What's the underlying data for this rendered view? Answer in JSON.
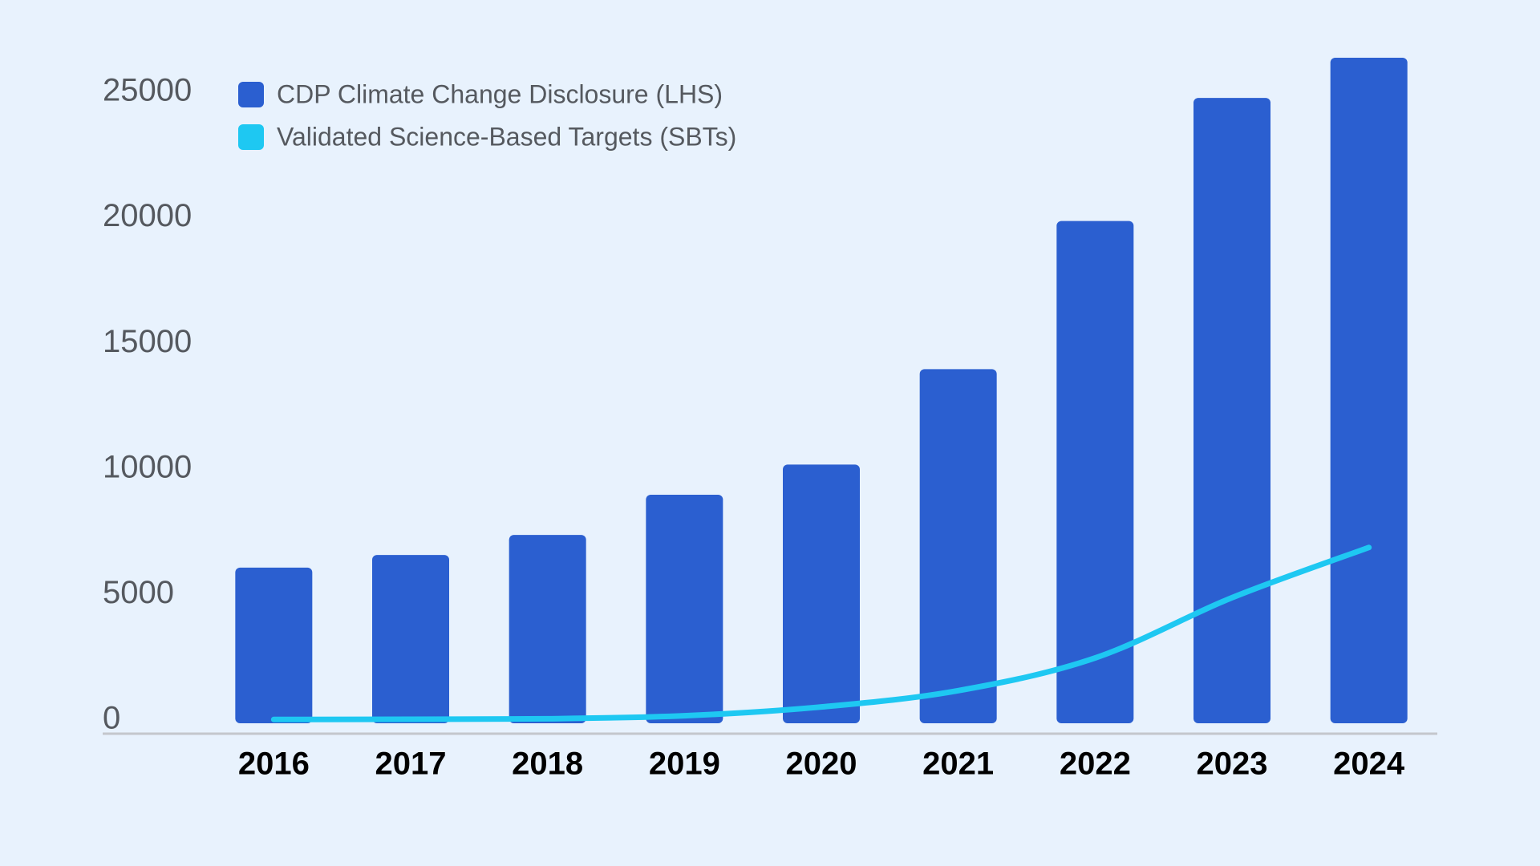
{
  "colors": {
    "background": "#e8f2fd",
    "bar": "#2b5fd0",
    "line": "#1ec8f2",
    "axis": "#c4c7cc",
    "ytick_text": "#55595f",
    "xtick_text": "#000000",
    "legend_text": "#55595f"
  },
  "legend": {
    "placement": "top-left",
    "items": [
      {
        "label": "CDP Climate Change Disclosure (LHS)",
        "color": "#2b5fd0",
        "marker": "rounded-square"
      },
      {
        "label": "Validated Science-Based Targets (SBTs)",
        "color": "#1ec8f2",
        "marker": "rounded-square"
      }
    ]
  },
  "chart_data": {
    "type": "bar",
    "title": "",
    "xlabel": "",
    "ylabel": "",
    "categories": [
      "2016",
      "2017",
      "2018",
      "2019",
      "2020",
      "2021",
      "2022",
      "2023",
      "2024"
    ],
    "ylim": [
      0,
      25000
    ],
    "yticks": [
      0,
      5000,
      10000,
      15000,
      20000,
      25000
    ],
    "grid": false,
    "series": [
      {
        "name": "CDP Climate Change Disclosure (LHS)",
        "kind": "bar",
        "values": [
          6200,
          6700,
          7500,
          9100,
          10300,
          14100,
          20000,
          24900,
          26500
        ]
      },
      {
        "name": "Validated Science-Based Targets (SBTs)",
        "kind": "line",
        "smooth": true,
        "values": [
          150,
          160,
          180,
          300,
          650,
          1300,
          2600,
          5000,
          7000
        ]
      }
    ]
  }
}
